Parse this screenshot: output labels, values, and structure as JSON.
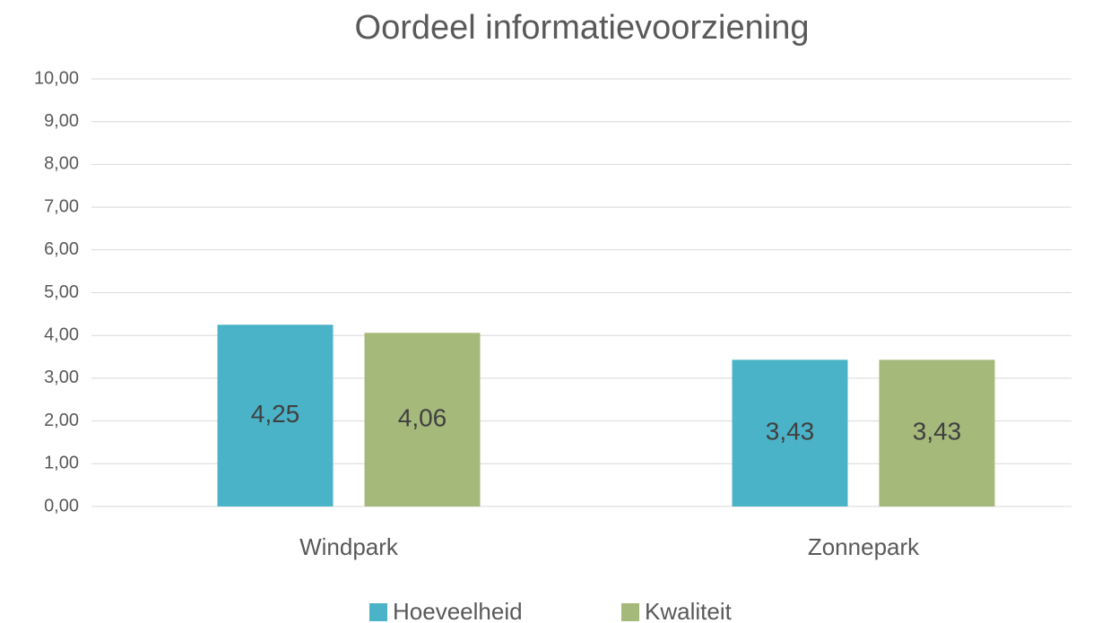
{
  "chart_data": {
    "type": "bar",
    "title": "Oordeel informatievoorziening",
    "categories": [
      "Windpark",
      "Zonnepark"
    ],
    "series": [
      {
        "name": "Hoeveelheid",
        "color": "#4bb3c8",
        "values": [
          4.25,
          3.43
        ],
        "value_labels": [
          "4,25",
          "3,43"
        ]
      },
      {
        "name": "Kwaliteit",
        "color": "#a5b97a",
        "values": [
          4.06,
          3.43
        ],
        "value_labels": [
          "4,06",
          "3,43"
        ]
      }
    ],
    "ylim": [
      0,
      10
    ],
    "yticks": [
      {
        "value": 0,
        "label": "0,00"
      },
      {
        "value": 1,
        "label": "1,00"
      },
      {
        "value": 2,
        "label": "2,00"
      },
      {
        "value": 3,
        "label": "3,00"
      },
      {
        "value": 4,
        "label": "4,00"
      },
      {
        "value": 5,
        "label": "5,00"
      },
      {
        "value": 6,
        "label": "6,00"
      },
      {
        "value": 7,
        "label": "7,00"
      },
      {
        "value": 8,
        "label": "8,00"
      },
      {
        "value": 9,
        "label": "9,00"
      },
      {
        "value": 10,
        "label": "10,00"
      }
    ],
    "grid": true,
    "legend": "bottom"
  }
}
